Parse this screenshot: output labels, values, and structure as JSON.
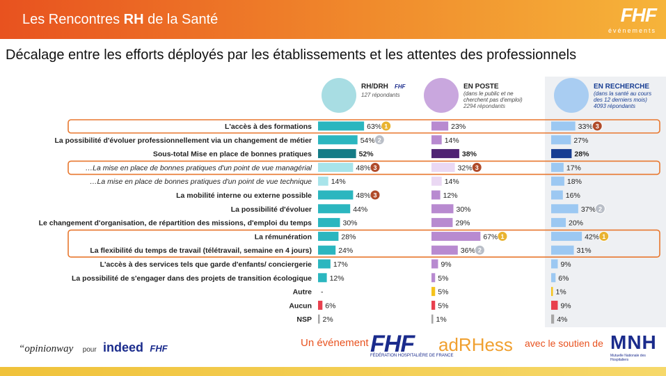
{
  "header": {
    "title_prefix": "Les Rencontres ",
    "title_bold": "RH",
    "title_suffix": " de la Santé",
    "logo": "FHF",
    "logo_sub": "événements"
  },
  "subtitle": "Décalage entre les efforts déployés par les établissements et les attentes des professionnels",
  "colors": {
    "teal": "#2bb6bf",
    "teal_dark": "#147b86",
    "teal_light": "#a8e4ea",
    "purple": "#b88ad0",
    "purple_dark": "#4f2373",
    "purple_light": "#ead8f3",
    "blue": "#9cc8f2",
    "blue_dark": "#173d93",
    "yellow": "#f5c31c",
    "red": "#e8404e",
    "grey": "#a6a6a6",
    "highlight": "#e8772e",
    "gold_medal": "#e9b330",
    "silver_medal": "#b9bec7",
    "bronze_medal": "#b04b2a"
  },
  "chart_data": {
    "type": "bar",
    "groups": [
      {
        "name": "RH/DRH",
        "logo": "FHF",
        "respondents": "127 répondants",
        "icon": "hr-desk-icon"
      },
      {
        "name": "EN POSTE",
        "note": "(dans le public et ne cherchent pas d'emploi)",
        "respondents": "2294 répondants",
        "icon": "two-people-icon"
      },
      {
        "name": "EN RECHERCHE",
        "note": "(dans la santé au cours des 12 derniers mois)",
        "respondents": "4093 répondants",
        "icon": "doctors-icon"
      }
    ],
    "categories": [
      "L'accès à des formations",
      "La possibilité d'évoluer professionnellement via un changement de métier",
      "Sous-total Mise en place de bonnes pratiques",
      "…La mise en place de bonnes pratiques d'un point de vue managérial",
      "…La mise en place de bonnes pratiques d'un point de vue technique",
      "La mobilité interne ou externe possible",
      "La possibilité d'évoluer",
      "Le changement d'organisation, de répartition des missions, d'emploi du temps",
      "La rémunération",
      "La flexibilité du temps de travail (télétravail, semaine en 4 jours)",
      "L'accès à des services tels que garde d'enfants/ conciergerie",
      "La possibilité de s'engager dans des projets de transition écologique",
      "Autre",
      "Aucun",
      "NSP"
    ],
    "series": [
      {
        "name": "RH/DRH",
        "values": [
          63,
          54,
          52,
          48,
          14,
          48,
          44,
          30,
          28,
          24,
          17,
          12,
          0,
          6,
          2
        ],
        "labels": [
          "63%",
          "54%",
          "52%",
          "48%",
          "14%",
          "48%",
          "44%",
          "30%",
          "28%",
          "24%",
          "17%",
          "12%",
          "-",
          "6%",
          "2%"
        ],
        "ranks": [
          1,
          2,
          0,
          3,
          0,
          3,
          0,
          0,
          0,
          0,
          0,
          0,
          0,
          0,
          0
        ]
      },
      {
        "name": "EN POSTE",
        "values": [
          23,
          14,
          38,
          32,
          14,
          12,
          30,
          29,
          67,
          36,
          9,
          5,
          5,
          5,
          1
        ],
        "labels": [
          "23%",
          "14%",
          "38%",
          "32%",
          "14%",
          "12%",
          "30%",
          "29%",
          "67%",
          "36%",
          "9%",
          "5%",
          "5%",
          "5%",
          "1%"
        ],
        "ranks": [
          0,
          0,
          0,
          3,
          0,
          0,
          0,
          0,
          1,
          2,
          0,
          0,
          0,
          0,
          0
        ]
      },
      {
        "name": "EN RECHERCHE",
        "values": [
          33,
          27,
          28,
          17,
          18,
          16,
          37,
          20,
          42,
          31,
          9,
          6,
          1,
          9,
          4
        ],
        "labels": [
          "33%",
          "27%",
          "28%",
          "17%",
          "18%",
          "16%",
          "37%",
          "20%",
          "42%",
          "31%",
          "9%",
          "6%",
          "1%",
          "9%",
          "4%"
        ],
        "ranks": [
          3,
          0,
          0,
          0,
          0,
          0,
          2,
          0,
          1,
          0,
          0,
          0,
          0,
          0,
          0
        ]
      }
    ]
  },
  "footer": {
    "opinionway": "“opinionway",
    "pour": "pour",
    "indeed": "indeed",
    "fhf_small": "FHF",
    "un_evenement": "Un événement",
    "fhf_big": "FHF",
    "fhf_big_sub": "FÉDÉRATION HOSPITALIÈRE DE FRANCE",
    "adrhess": "adRHess",
    "soutien": "avec le soutien de",
    "mnh": "MNH",
    "mnh_sub": "Mutuelle Nationale des Hospitaliers"
  }
}
